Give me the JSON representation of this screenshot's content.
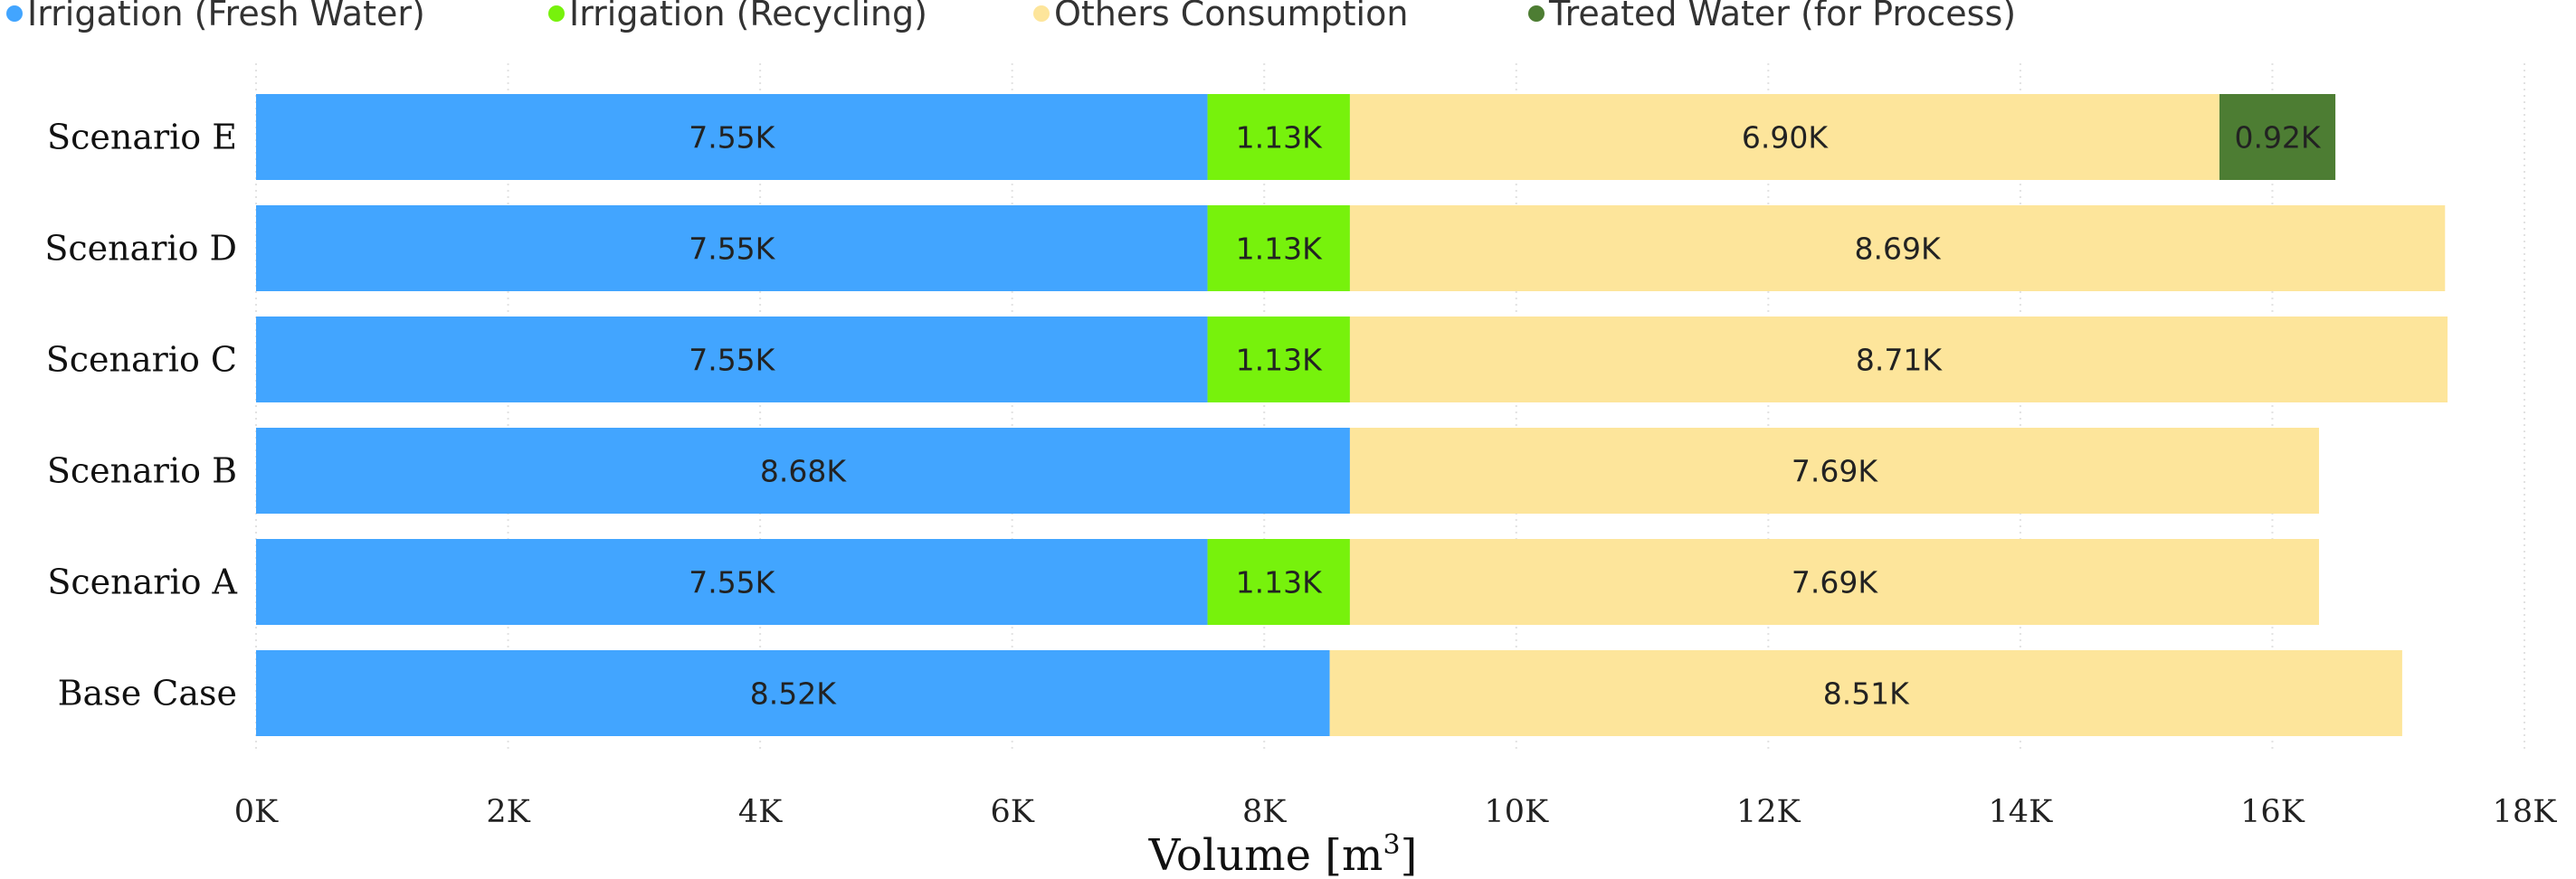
{
  "chart_data": {
    "type": "bar",
    "orientation": "horizontal",
    "stacked": true,
    "categories": [
      "Scenario E",
      "Scenario D",
      "Scenario C",
      "Scenario B",
      "Scenario A",
      "Base Case"
    ],
    "series": [
      {
        "name": "Irrigation (Fresh Water)",
        "color": "#42a5ff",
        "values": [
          7550,
          7550,
          7550,
          8680,
          7550,
          8520
        ],
        "labels": [
          "7.55K",
          "7.55K",
          "7.55K",
          "8.68K",
          "7.55K",
          "8.52K"
        ]
      },
      {
        "name": "Irrigation (Recycling)",
        "color": "#77f20c",
        "values": [
          1130,
          1130,
          1130,
          null,
          1130,
          null
        ],
        "labels": [
          "1.13K",
          "1.13K",
          "1.13K",
          "",
          "1.13K",
          ""
        ]
      },
      {
        "name": "Others Consumption",
        "color": "#fde59b",
        "values": [
          6900,
          8690,
          8710,
          7690,
          7690,
          8510
        ],
        "labels": [
          "6.90K",
          "8.69K",
          "8.71K",
          "7.69K",
          "7.69K",
          "8.51K"
        ]
      },
      {
        "name": "Treated Water (for Process)",
        "color": "#4d7d33",
        "values": [
          920,
          null,
          null,
          null,
          null,
          null
        ],
        "labels": [
          "0.92K",
          "",
          "",
          "",
          "",
          ""
        ]
      }
    ],
    "xlim": [
      0,
      18000
    ],
    "xticks": [
      0,
      2000,
      4000,
      6000,
      8000,
      10000,
      12000,
      14000,
      16000,
      18000
    ],
    "xtick_labels": [
      "0K",
      "2K",
      "4K",
      "6K",
      "8K",
      "10K",
      "12K",
      "14K",
      "16K",
      "18K"
    ],
    "xlabel": "Volume [m",
    "xlabel_superscript": "3",
    "xlabel_suffix": "]",
    "ylabel": "",
    "title": "",
    "grid": "vertical dotted",
    "legend_position": "top-left"
  }
}
